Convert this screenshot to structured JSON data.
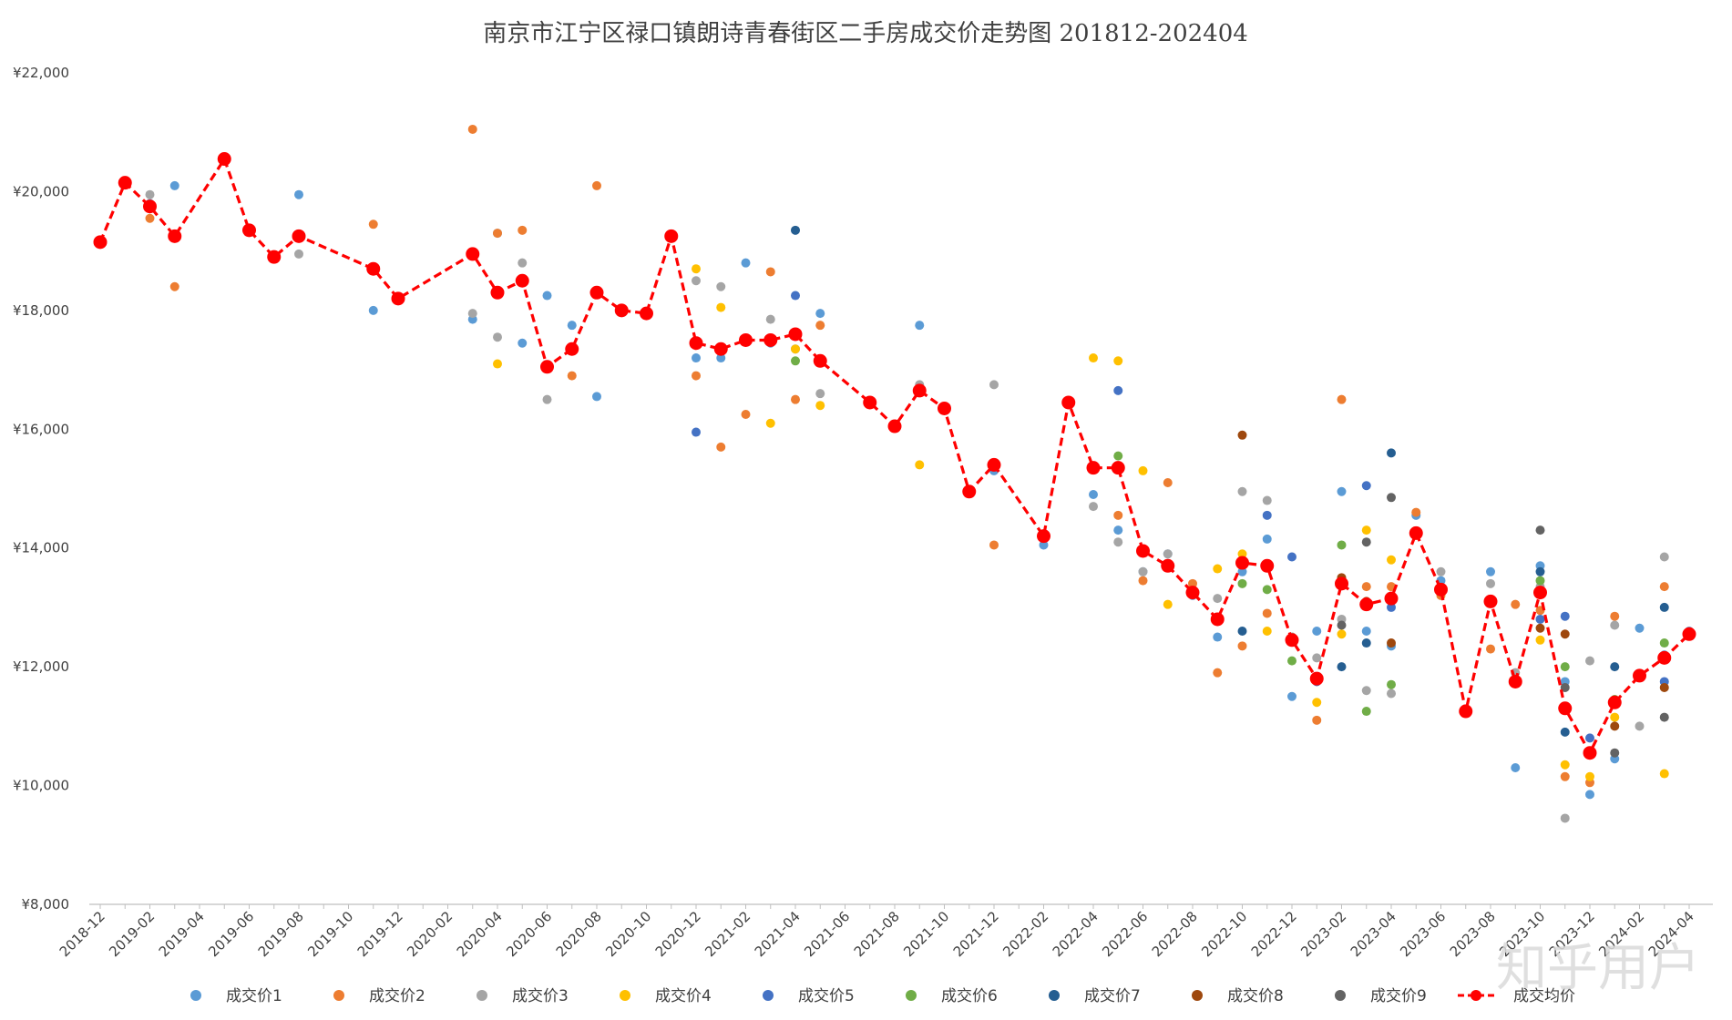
{
  "watermark": "知乎用户",
  "chart_data": {
    "type": "scatter",
    "title": "南京市江宁区禄口镇朗诗青春街区二手房成交价走势图 201812-202404",
    "xlabel": "",
    "ylabel": "",
    "ylim": [
      8000,
      22000
    ],
    "yticks": [
      "¥8,000",
      "¥10,000",
      "¥12,000",
      "¥14,000",
      "¥16,000",
      "¥18,000",
      "¥20,000",
      "¥22,000"
    ],
    "x_tick_labels": [
      "2018-12",
      "2019-02",
      "2019-04",
      "2019-06",
      "2019-08",
      "2019-10",
      "2019-12",
      "2020-02",
      "2020-04",
      "2020-06",
      "2020-08",
      "2020-10",
      "2020-12",
      "2021-02",
      "2021-04",
      "2021-06",
      "2021-08",
      "2021-10",
      "2021-12",
      "2022-02",
      "2022-04",
      "2022-06",
      "2022-08",
      "2022-10",
      "2022-12",
      "2023-02",
      "2023-04",
      "2023-06",
      "2023-08",
      "2023-10",
      "2023-12",
      "2024-02",
      "2024-04"
    ],
    "x_months": [
      "2018-12",
      "2019-01",
      "2019-02",
      "2019-03",
      "2019-04",
      "2019-05",
      "2019-06",
      "2019-07",
      "2019-08",
      "2019-09",
      "2019-10",
      "2019-11",
      "2019-12",
      "2020-01",
      "2020-02",
      "2020-03",
      "2020-04",
      "2020-05",
      "2020-06",
      "2020-07",
      "2020-08",
      "2020-09",
      "2020-10",
      "2020-11",
      "2020-12",
      "2021-01",
      "2021-02",
      "2021-03",
      "2021-04",
      "2021-05",
      "2021-06",
      "2021-07",
      "2021-08",
      "2021-09",
      "2021-10",
      "2021-11",
      "2021-12",
      "2022-01",
      "2022-02",
      "2022-03",
      "2022-04",
      "2022-05",
      "2022-06",
      "2022-07",
      "2022-08",
      "2022-09",
      "2022-10",
      "2022-11",
      "2022-12",
      "2023-01",
      "2023-02",
      "2023-03",
      "2023-04",
      "2023-05",
      "2023-06",
      "2023-07",
      "2023-08",
      "2023-09",
      "2023-10",
      "2023-11",
      "2023-12",
      "2024-01",
      "2024-02",
      "2024-03",
      "2024-04"
    ],
    "series": [
      {
        "name": "成交价1",
        "color": "#5B9BD5",
        "values": [
          19150,
          20150,
          19800,
          20100,
          null,
          20550,
          19350,
          18900,
          19950,
          null,
          null,
          18000,
          18200,
          null,
          null,
          17850,
          19300,
          17450,
          18250,
          17750,
          16550,
          18000,
          17950,
          19250,
          17200,
          17200,
          18800,
          17450,
          17350,
          17950,
          null,
          16450,
          16050,
          17750,
          16350,
          14950,
          15300,
          null,
          14050,
          16450,
          14900,
          14300,
          13600,
          13900,
          13200,
          12500,
          13600,
          14150,
          11500,
          12600,
          14950,
          12600,
          12350,
          14550,
          13450,
          11250,
          13600,
          10300,
          13700,
          11750,
          9850,
          10450,
          12650,
          12200,
          12600
        ]
      },
      {
        "name": "成交价2",
        "color": "#ED7D31",
        "values": [
          null,
          null,
          19550,
          18400,
          null,
          null,
          null,
          18900,
          null,
          null,
          null,
          19450,
          18200,
          null,
          null,
          21050,
          19300,
          19350,
          null,
          16900,
          20100,
          null,
          null,
          null,
          16900,
          15700,
          16250,
          18650,
          16500,
          17750,
          null,
          null,
          null,
          16700,
          null,
          null,
          14050,
          null,
          14200,
          null,
          null,
          14550,
          13450,
          15100,
          13400,
          11900,
          12350,
          12900,
          12500,
          11100,
          16500,
          13350,
          13350,
          14600,
          13200,
          null,
          12300,
          13050,
          12950,
          10150,
          10050,
          12850,
          null,
          13350,
          null
        ]
      },
      {
        "name": "成交价3",
        "color": "#A5A5A5",
        "values": [
          null,
          null,
          19950,
          null,
          null,
          null,
          null,
          null,
          18950,
          null,
          null,
          null,
          null,
          null,
          null,
          17950,
          17550,
          18800,
          16500,
          null,
          null,
          null,
          null,
          null,
          18500,
          18400,
          null,
          17850,
          null,
          16600,
          null,
          null,
          null,
          16750,
          null,
          null,
          16750,
          null,
          null,
          null,
          14700,
          14100,
          13600,
          13900,
          null,
          13150,
          14950,
          14800,
          12500,
          12150,
          12800,
          11600,
          11550,
          null,
          13600,
          null,
          13400,
          11900,
          13350,
          9450,
          12100,
          12700,
          11000,
          13850,
          null
        ]
      },
      {
        "name": "成交价4",
        "color": "#FFC000",
        "values": [
          null,
          null,
          null,
          null,
          null,
          null,
          null,
          null,
          null,
          null,
          null,
          null,
          null,
          null,
          null,
          null,
          17100,
          null,
          null,
          null,
          null,
          null,
          null,
          null,
          18700,
          18050,
          null,
          16100,
          17350,
          16400,
          null,
          null,
          null,
          15400,
          null,
          null,
          null,
          null,
          null,
          null,
          17200,
          17150,
          15300,
          13050,
          null,
          13650,
          13900,
          12600,
          null,
          11400,
          12550,
          14300,
          13800,
          null,
          null,
          null,
          null,
          null,
          12450,
          10350,
          10150,
          11150,
          null,
          10200,
          null
        ]
      },
      {
        "name": "成交价5",
        "color": "#4472C4",
        "values": [
          null,
          null,
          null,
          null,
          null,
          null,
          null,
          null,
          null,
          null,
          null,
          null,
          null,
          null,
          null,
          null,
          null,
          null,
          null,
          null,
          null,
          null,
          null,
          null,
          15950,
          null,
          null,
          null,
          18250,
          null,
          null,
          null,
          null,
          null,
          null,
          null,
          null,
          null,
          null,
          null,
          null,
          16650,
          null,
          null,
          null,
          null,
          null,
          14550,
          13850,
          11750,
          null,
          15050,
          13000,
          null,
          null,
          null,
          null,
          null,
          12800,
          12850,
          10800,
          null,
          null,
          11750,
          null
        ]
      },
      {
        "name": "成交价6",
        "color": "#70AD47",
        "values": [
          null,
          null,
          null,
          null,
          null,
          null,
          null,
          null,
          null,
          null,
          null,
          null,
          null,
          null,
          null,
          null,
          null,
          null,
          null,
          null,
          null,
          null,
          null,
          null,
          null,
          null,
          null,
          null,
          17150,
          null,
          null,
          null,
          null,
          null,
          null,
          null,
          null,
          null,
          null,
          null,
          null,
          15550,
          null,
          null,
          null,
          null,
          13400,
          13300,
          12100,
          null,
          14050,
          11250,
          11700,
          null,
          null,
          null,
          null,
          null,
          13450,
          12000,
          null,
          11450,
          null,
          12400,
          null
        ]
      },
      {
        "name": "成交价7",
        "color": "#255E91",
        "values": [
          null,
          null,
          null,
          null,
          null,
          null,
          null,
          null,
          null,
          null,
          null,
          null,
          null,
          null,
          null,
          null,
          null,
          null,
          null,
          null,
          null,
          null,
          null,
          null,
          null,
          null,
          null,
          null,
          19350,
          null,
          null,
          null,
          null,
          null,
          null,
          null,
          null,
          null,
          null,
          null,
          null,
          null,
          null,
          null,
          null,
          null,
          12600,
          null,
          null,
          null,
          12000,
          12400,
          15600,
          null,
          null,
          null,
          null,
          null,
          13600,
          10900,
          null,
          12000,
          null,
          13000,
          null
        ]
      },
      {
        "name": "成交价8",
        "color": "#9E480E",
        "values": [
          null,
          null,
          null,
          null,
          null,
          null,
          null,
          null,
          null,
          null,
          null,
          null,
          null,
          null,
          null,
          null,
          null,
          null,
          null,
          null,
          null,
          null,
          null,
          null,
          null,
          null,
          null,
          null,
          null,
          null,
          null,
          null,
          null,
          null,
          null,
          null,
          null,
          null,
          null,
          null,
          null,
          null,
          null,
          null,
          null,
          null,
          15900,
          null,
          null,
          null,
          13500,
          13100,
          12400,
          null,
          null,
          null,
          null,
          null,
          12650,
          12550,
          null,
          11000,
          null,
          11650,
          null
        ]
      },
      {
        "name": "成交价9",
        "color": "#636363",
        "values": [
          null,
          null,
          null,
          null,
          null,
          null,
          null,
          null,
          null,
          null,
          null,
          null,
          null,
          null,
          null,
          null,
          null,
          null,
          null,
          null,
          null,
          null,
          null,
          null,
          null,
          null,
          null,
          null,
          null,
          null,
          null,
          null,
          null,
          null,
          null,
          null,
          null,
          null,
          null,
          null,
          null,
          null,
          null,
          null,
          null,
          null,
          null,
          null,
          null,
          null,
          12700,
          14100,
          14850,
          null,
          null,
          null,
          null,
          null,
          14300,
          11650,
          null,
          10550,
          null,
          11150,
          null
        ]
      },
      {
        "name": "成交均价",
        "color": "#FF0000",
        "line": true,
        "values": [
          19150,
          20150,
          19750,
          19250,
          null,
          20550,
          19350,
          18900,
          19250,
          null,
          null,
          18700,
          18200,
          null,
          null,
          18950,
          18300,
          18500,
          17050,
          17350,
          18300,
          18000,
          17950,
          19250,
          17450,
          17350,
          17500,
          17500,
          17600,
          17150,
          null,
          16450,
          16050,
          16650,
          16350,
          14950,
          15400,
          null,
          14200,
          16450,
          15350,
          15350,
          13950,
          13700,
          13250,
          12800,
          13750,
          13700,
          12450,
          11800,
          13400,
          13050,
          13150,
          14250,
          13300,
          11250,
          13100,
          11750,
          13250,
          11300,
          10550,
          11400,
          11850,
          12150,
          12550
        ]
      }
    ]
  }
}
